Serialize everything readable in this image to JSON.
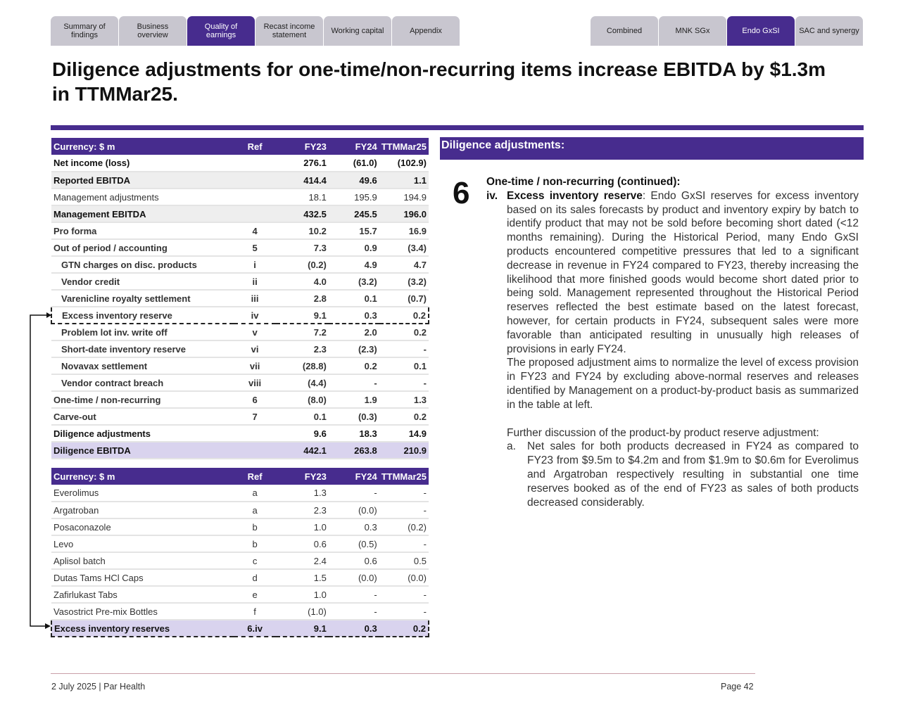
{
  "nav_left": [
    "Summary of findings",
    "Business overview",
    "Quality of earnings",
    "Recast income statement",
    "Working capital",
    "Appendix"
  ],
  "nav_left_active": 2,
  "nav_right": [
    "Combined",
    "MNK SGx",
    "Endo GxSI",
    "SAC and synergy"
  ],
  "nav_right_active": 2,
  "title": "Diligence adjustments for one-time/non-recurring items increase EBITDA by $1.3m in TTMMar25.",
  "table1": {
    "headers": [
      "Currency: $ m",
      "Ref",
      "FY23",
      "FY24",
      "TTMMar25"
    ],
    "rows": [
      {
        "label": "Net income (loss)",
        "ref": "",
        "fy23": "276.1",
        "fy24": "(61.0)",
        "ttm": "(102.9)",
        "style": "bold"
      },
      {
        "label": "Reported EBITDA",
        "ref": "",
        "fy23": "414.4",
        "fy24": "49.6",
        "ttm": "1.1",
        "style": "bold shade"
      },
      {
        "label": "Management adjustments",
        "ref": "",
        "fy23": "18.1",
        "fy24": "195.9",
        "ttm": "194.9",
        "style": ""
      },
      {
        "label": "Management EBITDA",
        "ref": "",
        "fy23": "432.5",
        "fy24": "245.5",
        "ttm": "196.0",
        "style": "bold shade"
      },
      {
        "label": "Pro forma",
        "ref": "4",
        "fy23": "10.2",
        "fy24": "15.7",
        "ttm": "16.9",
        "style": "refb"
      },
      {
        "label": "Out of period / accounting",
        "ref": "5",
        "fy23": "7.3",
        "fy24": "0.9",
        "ttm": "(3.4)",
        "style": "refb"
      },
      {
        "label": "GTN charges on disc. products",
        "ref": "i",
        "fy23": "(0.2)",
        "fy24": "4.9",
        "ttm": "4.7",
        "style": "ind refb"
      },
      {
        "label": "Vendor credit",
        "ref": "ii",
        "fy23": "4.0",
        "fy24": "(3.2)",
        "ttm": "(3.2)",
        "style": "ind refb"
      },
      {
        "label": "Varenicline royalty settlement",
        "ref": "iii",
        "fy23": "2.8",
        "fy24": "0.1",
        "ttm": "(0.7)",
        "style": "ind refb"
      },
      {
        "label": "Excess inventory reserve",
        "ref": "iv",
        "fy23": "9.1",
        "fy24": "0.3",
        "ttm": "0.2",
        "style": "ind refb dash"
      },
      {
        "label": "Problem lot inv. write off",
        "ref": "v",
        "fy23": "7.2",
        "fy24": "2.0",
        "ttm": "0.2",
        "style": "ind refb"
      },
      {
        "label": "Short-date inventory reserve",
        "ref": "vi",
        "fy23": "2.3",
        "fy24": "(2.3)",
        "ttm": "-",
        "style": "ind refb"
      },
      {
        "label": "Novavax settlement",
        "ref": "vii",
        "fy23": "(28.8)",
        "fy24": "0.2",
        "ttm": "0.1",
        "style": "ind refb"
      },
      {
        "label": "Vendor contract breach",
        "ref": "viii",
        "fy23": "(4.4)",
        "fy24": "-",
        "ttm": "-",
        "style": "ind refb"
      },
      {
        "label": "One-time / non-recurring",
        "ref": "6",
        "fy23": "(8.0)",
        "fy24": "1.9",
        "ttm": "1.3",
        "style": "refb"
      },
      {
        "label": "Carve-out",
        "ref": "7",
        "fy23": "0.1",
        "fy24": "(0.3)",
        "ttm": "0.2",
        "style": "refb"
      },
      {
        "label": "Diligence adjustments",
        "ref": "",
        "fy23": "9.6",
        "fy24": "18.3",
        "ttm": "14.9",
        "style": "bold"
      },
      {
        "label": "Diligence EBITDA",
        "ref": "",
        "fy23": "442.1",
        "fy24": "263.8",
        "ttm": "210.9",
        "style": "hl"
      }
    ]
  },
  "table2": {
    "headers": [
      "Currency: $ m",
      "Ref",
      "FY23",
      "FY24",
      "TTMMar25"
    ],
    "rows": [
      {
        "label": "Everolimus",
        "ref": "a",
        "fy23": "1.3",
        "fy24": "-",
        "ttm": "-",
        "style": ""
      },
      {
        "label": "Argatroban",
        "ref": "a",
        "fy23": "2.3",
        "fy24": "(0.0)",
        "ttm": "-",
        "style": ""
      },
      {
        "label": "Posaconazole",
        "ref": "b",
        "fy23": "1.0",
        "fy24": "0.3",
        "ttm": "(0.2)",
        "style": ""
      },
      {
        "label": "Levo",
        "ref": "b",
        "fy23": "0.6",
        "fy24": "(0.5)",
        "ttm": "-",
        "style": ""
      },
      {
        "label": "Aplisol batch",
        "ref": "c",
        "fy23": "2.4",
        "fy24": "0.6",
        "ttm": "0.5",
        "style": ""
      },
      {
        "label": "Dutas Tams HCl Caps",
        "ref": "d",
        "fy23": "1.5",
        "fy24": "(0.0)",
        "ttm": "(0.0)",
        "style": ""
      },
      {
        "label": "Zafirlukast Tabs",
        "ref": "e",
        "fy23": "1.0",
        "fy24": "-",
        "ttm": "-",
        "style": ""
      },
      {
        "label": "Vasostrict Pre-mix Bottles",
        "ref": "f",
        "fy23": "(1.0)",
        "fy24": "-",
        "ttm": "-",
        "style": ""
      },
      {
        "label": "Excess inventory reserves",
        "ref": "6.iv",
        "fy23": "9.1",
        "fy24": "0.3",
        "ttm": "0.2",
        "style": "hl dash"
      }
    ]
  },
  "panel": {
    "header": "Diligence adjustments:",
    "number": "6",
    "subtitle": "One-time / non-recurring (continued):",
    "item_marker": "iv.",
    "item_title": "Excess inventory reserve",
    "item_text": ": Endo GxSI reserves for excess inventory based on its sales forecasts by product and inventory expiry by batch to identify product that may not be sold before becoming short dated (<12 months remaining). During the Historical Period, many Endo GxSI products encountered competitive pressures that led to a significant decrease in revenue in FY24 compared to FY23, thereby increasing the likelihood that more finished goods would become short dated prior to being sold. Management represented throughout the Historical Period reserves reflected the best estimate based on the latest forecast, however, for certain products in FY24, subsequent sales were more favorable than anticipated resulting in unusually high releases of provisions in early FY24.",
    "item_text2": "The proposed adjustment aims to normalize the level of excess provision in FY23 and FY24 by excluding above-normal reserves and releases identified by Management on a product-by-product basis as summarized in the table at left.",
    "further": "Further discussion of the product-by product reserve adjustment:",
    "sub_marker": "a.",
    "sub_text": "Net sales for both products decreased in FY24 as compared to FY23 from $9.5m to $4.2m and from $1.9m to $0.6m for Everolimus and Argatroban respectively resulting in substantial one time reserves booked as of the end of FY23 as sales of both products decreased considerably."
  },
  "footer": {
    "left": "2 July 2025 | Par Health",
    "right": "Page 42"
  }
}
